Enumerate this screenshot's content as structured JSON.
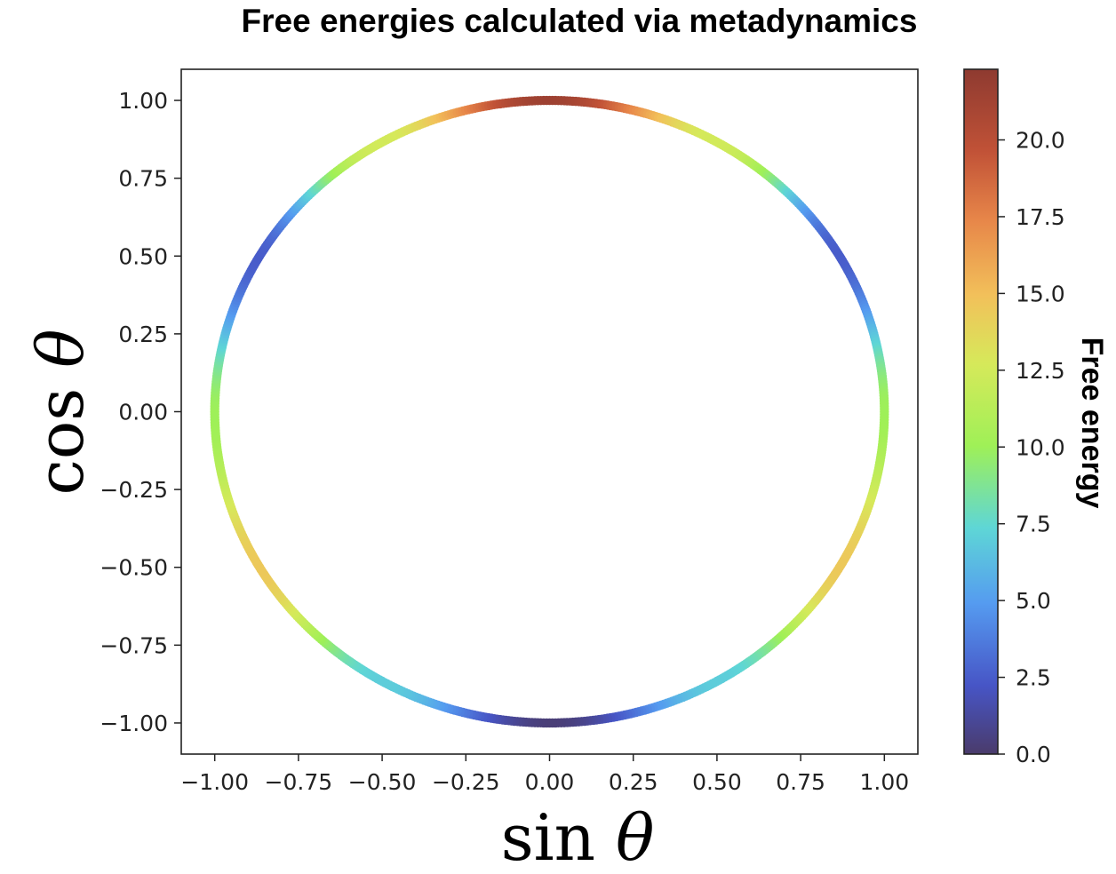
{
  "chart_data": {
    "type": "scatter",
    "title": "Free energies calculated via metadynamics",
    "xlabel": "sin θ",
    "ylabel": "cos θ",
    "xlim": [
      -1.1,
      1.1
    ],
    "ylim": [
      -1.1,
      1.1
    ],
    "xticks": [
      "−1.00",
      "−0.75",
      "−0.50",
      "−0.25",
      "0.00",
      "0.25",
      "0.50",
      "0.75",
      "1.00"
    ],
    "yticks": [
      "1.00",
      "0.75",
      "0.50",
      "0.25",
      "0.00",
      "−0.25",
      "−0.50",
      "−0.75",
      "−1.00"
    ],
    "grid": false,
    "colorbar": {
      "label": "Free energy",
      "range": [
        0,
        22.3
      ],
      "ticks": [
        "0.0",
        "2.5",
        "5.0",
        "7.5",
        "10.0",
        "12.5",
        "15.0",
        "17.5",
        "20.0"
      ],
      "colormap": "turbo"
    },
    "series": [
      {
        "theta_deg": [
          -180,
          -150,
          -120,
          -90,
          -60,
          -30,
          0,
          30,
          60,
          90,
          120,
          150,
          180
        ],
        "free_energy": [
          0.3,
          7.0,
          14.5,
          10.0,
          2.5,
          12.5,
          21.5,
          12.5,
          2.5,
          10.0,
          14.5,
          7.0,
          0.3
        ]
      }
    ]
  }
}
